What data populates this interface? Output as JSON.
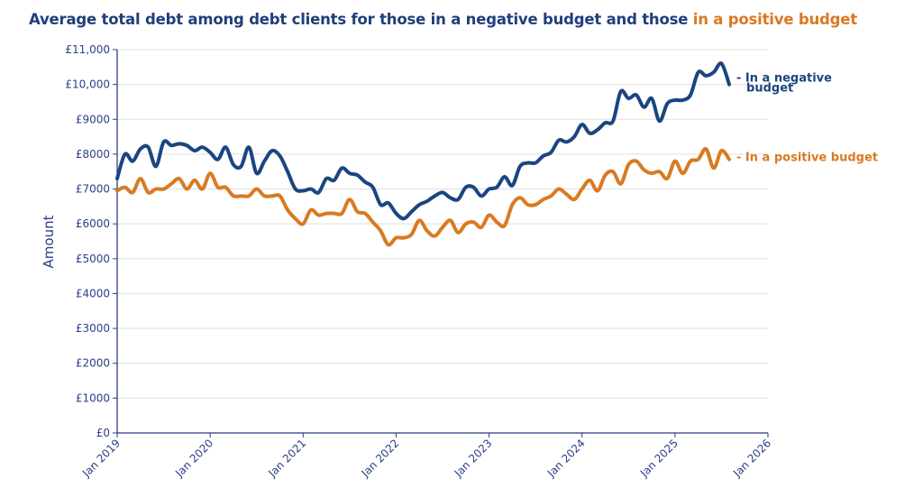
{
  "chart_data": {
    "type": "line",
    "title_part1": "Average total debt among debt clients for those in a negative budget and those ",
    "title_part2": "in a positive budget",
    "ylabel": "Amount",
    "xlabel": "",
    "ylim": [
      0,
      11000
    ],
    "yticks": [
      "£0",
      "£1000",
      "£2000",
      "£3000",
      "£4000",
      "£5000",
      "£6000",
      "£7000",
      "£8000",
      "£9000",
      "£10,000",
      "£11,000"
    ],
    "xticks": [
      "Jan 2019",
      "Jan 2020",
      "Jan 2021",
      "Jan 2022",
      "Jan 2023",
      "Jan 2024",
      "Jan 2025",
      "Jan 2026"
    ],
    "xrange": [
      "2019-01",
      "2026-01"
    ],
    "grid": true,
    "start_month": "2019-01",
    "frequency": "monthly",
    "series": [
      {
        "name": "In a negative budget",
        "label_lines": [
          "In a negative",
          "budget"
        ],
        "color": "#1b4581",
        "values": [
          7300,
          8000,
          7800,
          8150,
          8200,
          7650,
          8350,
          8250,
          8300,
          8250,
          8100,
          8200,
          8050,
          7850,
          8200,
          7700,
          7650,
          8200,
          7450,
          7800,
          8100,
          7950,
          7500,
          7000,
          6950,
          7000,
          6900,
          7300,
          7250,
          7600,
          7450,
          7400,
          7200,
          7050,
          6550,
          6600,
          6300,
          6150,
          6350,
          6550,
          6650,
          6800,
          6900,
          6750,
          6700,
          7050,
          7050,
          6800,
          7000,
          7050,
          7350,
          7100,
          7650,
          7750,
          7750,
          7950,
          8050,
          8400,
          8350,
          8500,
          8850,
          8600,
          8700,
          8900,
          8950,
          9800,
          9600,
          9700,
          9350,
          9600,
          8950,
          9450,
          9550,
          9550,
          9700,
          10350,
          10250,
          10350,
          10600,
          10000
        ]
      },
      {
        "name": "In a positive budget",
        "label_lines": [
          "In a positive budget"
        ],
        "color": "#d97a22",
        "values": [
          6950,
          7050,
          6900,
          7300,
          6900,
          7000,
          7000,
          7150,
          7300,
          7000,
          7250,
          7000,
          7450,
          7050,
          7050,
          6800,
          6800,
          6800,
          7000,
          6800,
          6800,
          6800,
          6400,
          6150,
          6000,
          6400,
          6250,
          6300,
          6300,
          6300,
          6700,
          6350,
          6300,
          6050,
          5800,
          5400,
          5600,
          5600,
          5700,
          6100,
          5800,
          5650,
          5900,
          6100,
          5750,
          6000,
          6050,
          5900,
          6250,
          6050,
          5950,
          6550,
          6750,
          6550,
          6550,
          6700,
          6800,
          7000,
          6850,
          6700,
          7000,
          7250,
          6950,
          7400,
          7500,
          7150,
          7700,
          7800,
          7550,
          7450,
          7500,
          7300,
          7800,
          7450,
          7800,
          7850,
          8150,
          7600,
          8100,
          7850
        ]
      }
    ]
  }
}
